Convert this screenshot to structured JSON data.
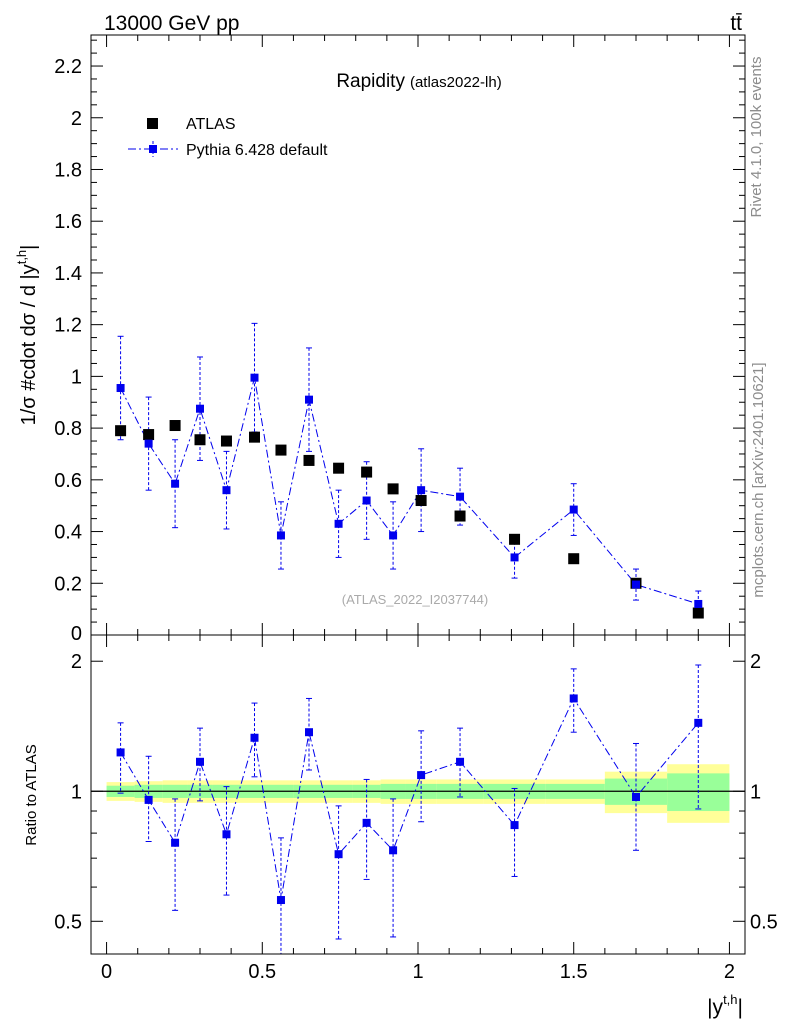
{
  "header": {
    "energy_label": "13000 GeV pp",
    "process_label": "tt̄"
  },
  "side": {
    "rivet_label": "Rivet 4.1.0,  100k events",
    "mcplots_label": "mcplots.cern.ch [arXiv:2401.10621]"
  },
  "chart_data": {
    "type": "scatter",
    "title": "Rapidity",
    "title_note": "(atlas2022-lh)",
    "watermark": "(ATLAS_2022_I2037744)",
    "ylabel_main": "1/σ #cdot dσ / d |y",
    "ylabel_main_sup": "t,h",
    "ylabel_main_end": "|",
    "ylabel_ratio": "Ratio to ATLAS",
    "xlabel": "|y",
    "xlabel_sup": "t,h",
    "xlabel_end": "|",
    "xlim": [
      -0.05,
      2.05
    ],
    "ylim_main": [
      0,
      2.32
    ],
    "ylim_ratio": [
      0.42,
      2.3
    ],
    "x_ticks": [
      "0",
      "0.5",
      "1",
      "1.5",
      "2"
    ],
    "y_ticks_main": [
      "0",
      "0.2",
      "0.4",
      "0.6",
      "0.8",
      "1",
      "1.2",
      "1.4",
      "1.6",
      "1.8",
      "2",
      "2.2"
    ],
    "y_ticks_ratio": [
      "0.5",
      "1",
      "2"
    ],
    "legend": [
      "ATLAS",
      "Pythia 6.428 default"
    ],
    "colors": {
      "data": "#000000",
      "mc": "#0000ee",
      "band_inner": "#99ff99",
      "band_outer": "#ffff99"
    },
    "x": [
      0.045,
      0.135,
      0.22,
      0.3,
      0.385,
      0.475,
      0.56,
      0.65,
      0.745,
      0.835,
      0.92,
      1.01,
      1.135,
      1.31,
      1.5,
      1.7,
      1.9
    ],
    "bin_edges": [
      0,
      0.09,
      0.18,
      0.26,
      0.34,
      0.43,
      0.52,
      0.6,
      0.7,
      0.79,
      0.88,
      0.96,
      1.06,
      1.21,
      1.41,
      1.6,
      1.8,
      2.0
    ],
    "series": [
      {
        "name": "ATLAS",
        "values": [
          0.79,
          0.775,
          0.81,
          0.755,
          0.75,
          0.765,
          0.715,
          0.675,
          0.645,
          0.63,
          0.565,
          0.52,
          0.46,
          0.37,
          0.295,
          0.2,
          0.085
        ]
      },
      {
        "name": "Pythia 6.428 default",
        "values": [
          0.955,
          0.74,
          0.585,
          0.875,
          0.56,
          0.995,
          0.385,
          0.91,
          0.43,
          0.52,
          0.385,
          0.56,
          0.535,
          0.3,
          0.485,
          0.195,
          0.12
        ],
        "errors": [
          0.2,
          0.18,
          0.17,
          0.2,
          0.15,
          0.21,
          0.13,
          0.2,
          0.13,
          0.15,
          0.13,
          0.16,
          0.11,
          0.08,
          0.1,
          0.06,
          0.05
        ]
      }
    ],
    "ratio": {
      "values": [
        1.23,
        0.955,
        0.76,
        1.17,
        0.795,
        1.33,
        0.56,
        1.37,
        0.715,
        0.845,
        0.73,
        1.09,
        1.17,
        0.835,
        1.64,
        0.97,
        1.44
      ],
      "errors_up": [
        0.21,
        0.25,
        0.2,
        0.23,
        0.23,
        0.27,
        0.22,
        0.27,
        0.21,
        0.22,
        0.23,
        0.29,
        0.23,
        0.18,
        0.28,
        0.32,
        0.52
      ],
      "errors_down": [
        0.24,
        0.19,
        0.23,
        0.22,
        0.22,
        0.25,
        0.2,
        0.25,
        0.26,
        0.22,
        0.27,
        0.24,
        0.2,
        0.2,
        0.27,
        0.24,
        0.53
      ],
      "band_inner": [
        0.03,
        0.035,
        0.035,
        0.035,
        0.035,
        0.035,
        0.035,
        0.035,
        0.035,
        0.035,
        0.04,
        0.04,
        0.04,
        0.04,
        0.04,
        0.07,
        0.1
      ],
      "band_outer": [
        0.05,
        0.055,
        0.06,
        0.06,
        0.06,
        0.06,
        0.06,
        0.06,
        0.06,
        0.06,
        0.065,
        0.065,
        0.065,
        0.065,
        0.065,
        0.11,
        0.155
      ]
    }
  }
}
